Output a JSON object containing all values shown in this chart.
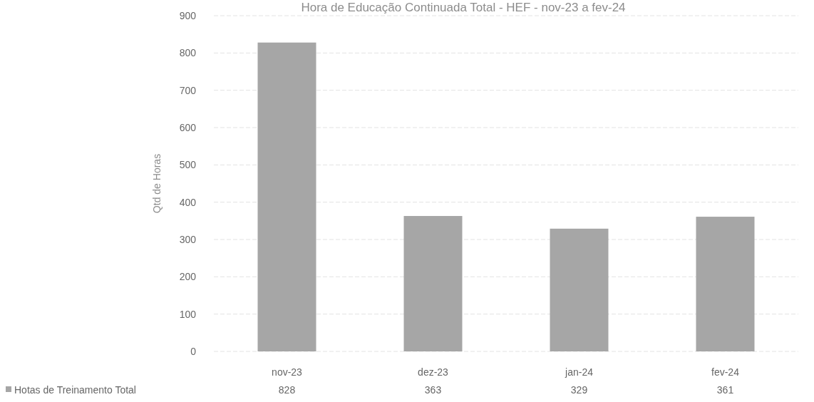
{
  "chart_data": {
    "type": "bar",
    "title": "Hora de Educação Continuada Total - HEF - nov-23 a fev-24",
    "ylabel": "Qtd de Horas",
    "categories": [
      "nov-23",
      "dez-23",
      "jan-24",
      "fev-24"
    ],
    "series": [
      {
        "name": "Hotas de Treinamento Total",
        "color": "#a6a6a6",
        "values": [
          828,
          363,
          329,
          361
        ]
      }
    ],
    "ylim": [
      0,
      900
    ],
    "yticks": [
      0,
      100,
      200,
      300,
      400,
      500,
      600,
      700,
      800,
      900
    ],
    "grid": "y",
    "legend": "bottom left",
    "data_labels": true
  }
}
